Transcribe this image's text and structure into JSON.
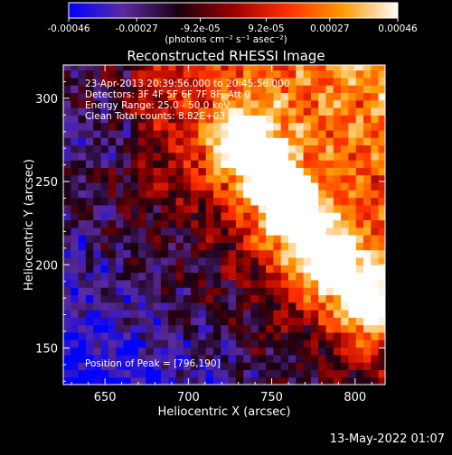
{
  "chart_data": {
    "type": "heatmap",
    "title": "Reconstructed RHESSI Image",
    "xlabel": "Heliocentric X (arcsec)",
    "ylabel": "Heliocentric Y (arcsec)",
    "xlim": [
      625,
      818
    ],
    "ylim": [
      128,
      320
    ],
    "xticks": [
      650,
      700,
      750,
      800
    ],
    "yticks": [
      150,
      200,
      250,
      300
    ],
    "colorbar": {
      "min": -0.00046,
      "max": 0.00046,
      "ticks": [
        "-0.00046",
        "-0.00027",
        "-9.2e-05",
        "9.2e-05",
        "0.00027",
        "0.00046"
      ],
      "tick_values": [
        -0.00046,
        -0.00027,
        -9.2e-05,
        9.2e-05,
        0.00027,
        0.00046
      ],
      "units_label": "(photons cm⁻² s⁻¹ asec⁻²)",
      "colormap": [
        "#0000ff",
        "#5a2aa0",
        "#1a0010",
        "#9a0000",
        "#ff3000",
        "#ff9a00",
        "#ffffff"
      ]
    },
    "annotations": [
      "23-Apr-2013 20:39:56.000 to 20:45:56.000",
      "Detectors: 3F 4F 5F 6F 7F 8F, Att 0",
      "Energy Range: 25.0 - 50.0 keV",
      "Clean     Total counts: 8.82E+03"
    ],
    "peak_label": "Position of Peak = [796,190]",
    "peak": [
      796,
      190
    ]
  },
  "footer": {
    "date": "13-May-2022 01:07"
  }
}
